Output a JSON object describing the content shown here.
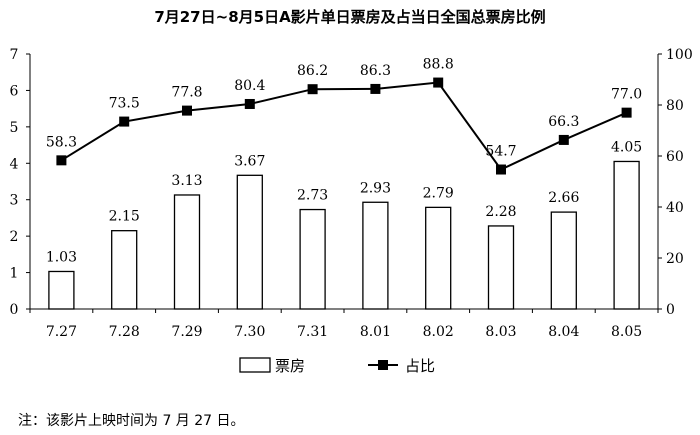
{
  "chart_data": {
    "type": "bar+line",
    "title": "7月27日~8月5日A影片单日票房及占当日全国总票房比例",
    "categories": [
      "7.27",
      "7.28",
      "7.29",
      "7.30",
      "7.31",
      "8.01",
      "8.02",
      "8.03",
      "8.04",
      "8.05"
    ],
    "series": [
      {
        "name": "票房",
        "type": "bar",
        "axis": "left",
        "values": [
          1.03,
          2.15,
          3.13,
          3.67,
          2.73,
          2.93,
          2.79,
          2.28,
          2.66,
          4.05
        ],
        "labels": [
          "1.03",
          "2.15",
          "3.13",
          "3.67",
          "2.73",
          "2.93",
          "2.79",
          "2.28",
          "2.66",
          "4.05"
        ]
      },
      {
        "name": "占比",
        "type": "line",
        "axis": "right",
        "values": [
          58.3,
          73.5,
          77.8,
          80.4,
          86.2,
          86.3,
          88.8,
          54.7,
          66.3,
          77.0
        ],
        "labels": [
          "58.3",
          "73.5",
          "77.8",
          "80.4",
          "86.2",
          "86.3",
          "88.8",
          "54.7",
          "66.3",
          "77.0"
        ]
      }
    ],
    "y_left": {
      "range": [
        0,
        7
      ],
      "ticks": [
        "0",
        "1",
        "2",
        "3",
        "4",
        "5",
        "6",
        "7"
      ]
    },
    "y_right": {
      "range": [
        0,
        100
      ],
      "ticks": [
        "0",
        "20",
        "40",
        "60",
        "80",
        "100"
      ]
    },
    "grid": false,
    "legend": {
      "placement": "bottom"
    },
    "colors": {
      "bar_fill": "#ffffff",
      "bar_stroke": "#000000",
      "line": "#000000"
    }
  },
  "note": "注：该影片上映时间为 7 月 27 日。"
}
